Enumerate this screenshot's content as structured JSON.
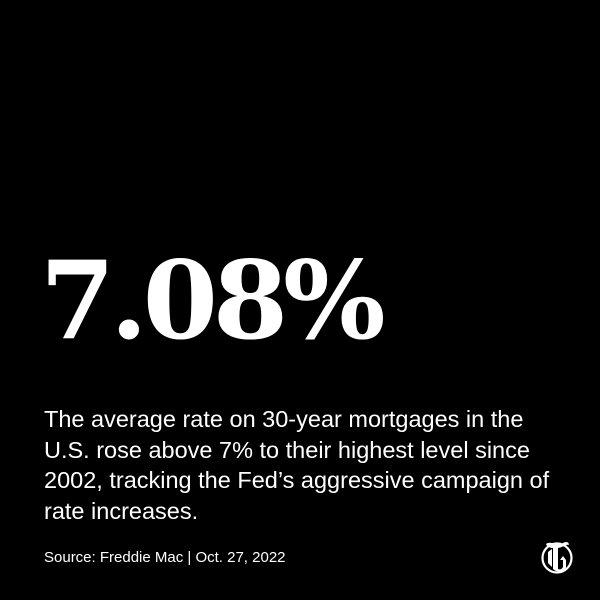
{
  "headline": {
    "stat": "7.08%"
  },
  "body": {
    "description": "The average rate on 30-year mortgages in the U.S. rose above 7% to their highest level since 2002, tracking the Fed’s aggressive campaign of rate increases."
  },
  "footer": {
    "source": "Source: Freddie Mac | Oct. 27, 2022",
    "logo_icon": "nyt-t-logo-icon"
  },
  "colors": {
    "background": "#000000",
    "text": "#ffffff"
  }
}
